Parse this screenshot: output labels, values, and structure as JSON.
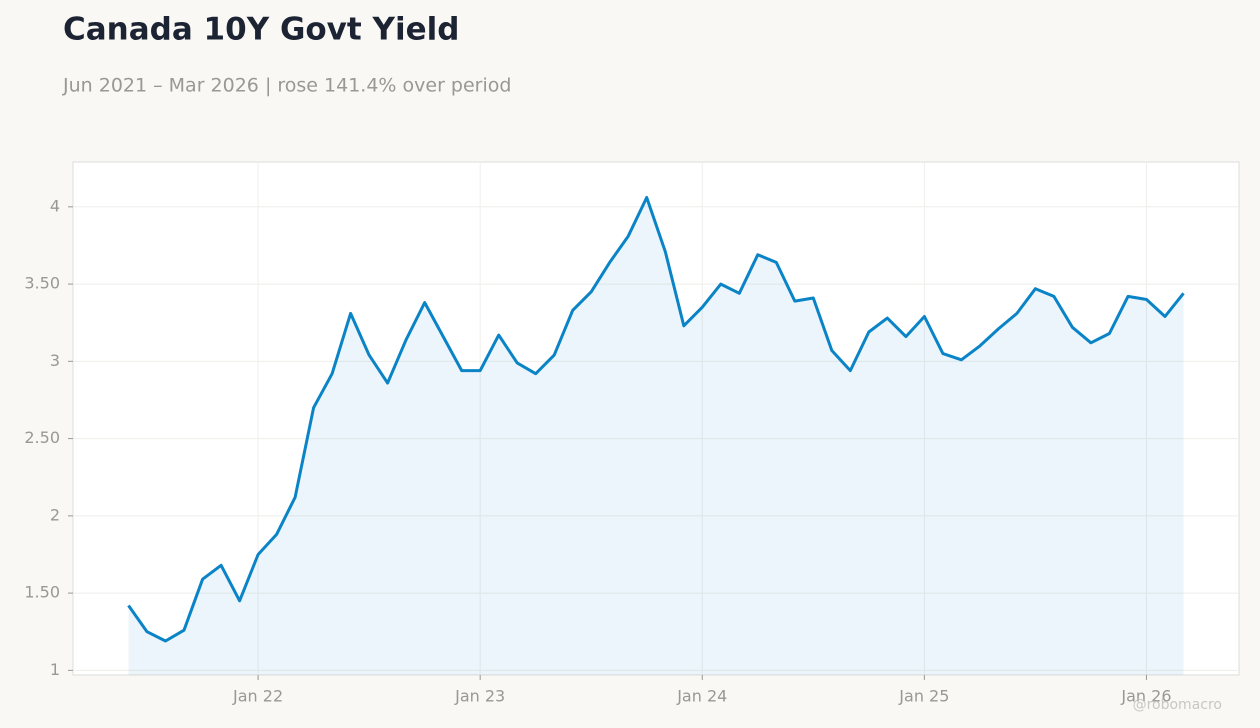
{
  "chart_data": {
    "type": "line",
    "title": "Canada 10Y Govt Yield",
    "subtitle": "Jun 2021 – Mar 2026 | rose 141.4% over period",
    "watermark": "@robomacro",
    "x": [
      "2021-06",
      "2021-07",
      "2021-08",
      "2021-09",
      "2021-10",
      "2021-11",
      "2021-12",
      "2022-01",
      "2022-02",
      "2022-03",
      "2022-04",
      "2022-05",
      "2022-06",
      "2022-07",
      "2022-08",
      "2022-09",
      "2022-10",
      "2022-11",
      "2022-12",
      "2023-01",
      "2023-02",
      "2023-03",
      "2023-04",
      "2023-05",
      "2023-06",
      "2023-07",
      "2023-08",
      "2023-09",
      "2023-10",
      "2023-11",
      "2023-12",
      "2024-01",
      "2024-02",
      "2024-03",
      "2024-04",
      "2024-05",
      "2024-06",
      "2024-07",
      "2024-08",
      "2024-09",
      "2024-10",
      "2024-11",
      "2024-12",
      "2025-01",
      "2025-02",
      "2025-03",
      "2025-04",
      "2025-05",
      "2025-06",
      "2025-07",
      "2025-08",
      "2025-09",
      "2025-10",
      "2025-11",
      "2025-12",
      "2026-01",
      "2026-02",
      "2026-03"
    ],
    "series": [
      {
        "name": "Canada 10Y Govt Yield",
        "color": "#0a84c6",
        "values": [
          1.42,
          1.25,
          1.19,
          1.26,
          1.59,
          1.68,
          1.45,
          1.75,
          1.88,
          2.12,
          2.7,
          2.92,
          3.31,
          3.04,
          2.86,
          3.14,
          3.38,
          3.16,
          2.94,
          2.94,
          3.17,
          2.99,
          2.92,
          3.04,
          3.33,
          3.45,
          3.64,
          3.81,
          4.06,
          3.71,
          3.23,
          3.35,
          3.5,
          3.44,
          3.69,
          3.64,
          3.39,
          3.41,
          3.07,
          2.94,
          3.19,
          3.28,
          3.16,
          3.29,
          3.05,
          3.01,
          3.1,
          3.21,
          3.31,
          3.47,
          3.42,
          3.22,
          3.12,
          3.18,
          3.42,
          3.4,
          3.29,
          3.44
        ]
      }
    ],
    "xlim": [
      "2021-03",
      "2026-06"
    ],
    "xticks": [
      {
        "value": "2022-01",
        "label": "Jan 22"
      },
      {
        "value": "2023-01",
        "label": "Jan 23"
      },
      {
        "value": "2024-01",
        "label": "Jan 24"
      },
      {
        "value": "2025-01",
        "label": "Jan 25"
      },
      {
        "value": "2026-01",
        "label": "Jan 26"
      }
    ],
    "ylim": [
      0.97,
      4.29
    ],
    "yticks": [
      1,
      {
        "value": 1.5,
        "label": "1.50"
      },
      2,
      {
        "value": 2.5,
        "label": "2.50"
      },
      3,
      {
        "value": 3.5,
        "label": "3.50"
      },
      4
    ],
    "grid": true,
    "area": true
  }
}
